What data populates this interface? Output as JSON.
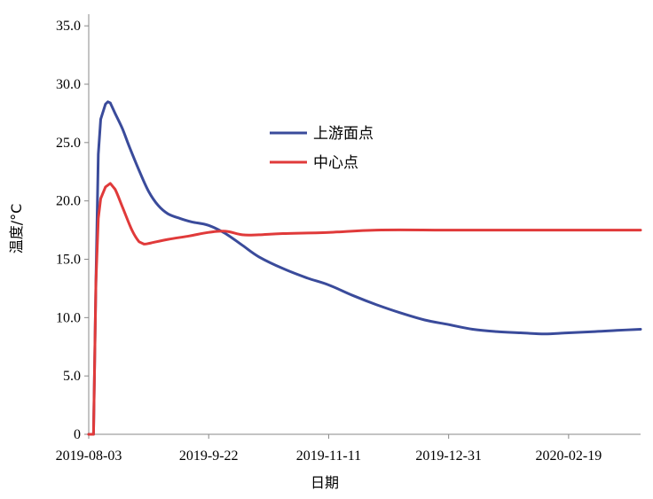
{
  "chart_data": {
    "type": "line",
    "title": "",
    "xlabel": "日期",
    "ylabel": "温度/°C",
    "x_tick_labels": [
      "2019-08-03",
      "2019-9-22",
      "2019-11-11",
      "2019-12-31",
      "2020-02-19"
    ],
    "x_ticks": [
      "2019-08-03",
      "2019-09-22",
      "2019-11-11",
      "2019-12-31",
      "2020-02-19"
    ],
    "xlim": [
      "2019-08-03",
      "2020-03-20"
    ],
    "y_tick_labels": [
      "0",
      "5.0",
      "10.0",
      "15.0",
      "20.0",
      "25.0",
      "30.0",
      "35.0"
    ],
    "ylim": [
      0,
      36
    ],
    "grid": false,
    "legend_position": "upper-center",
    "colors": {
      "上游面点": "#3a4b9b",
      "中心点": "#e03a3a"
    },
    "series": [
      {
        "name": "上游面点",
        "color": "#3a4b9b",
        "points": [
          [
            "2019-08-03",
            0.0
          ],
          [
            "2019-08-05",
            0.0
          ],
          [
            "2019-08-06",
            13.0
          ],
          [
            "2019-08-07",
            24.0
          ],
          [
            "2019-08-08",
            27.0
          ],
          [
            "2019-08-10",
            28.3
          ],
          [
            "2019-08-11",
            28.5
          ],
          [
            "2019-08-12",
            28.4
          ],
          [
            "2019-08-14",
            27.5
          ],
          [
            "2019-08-17",
            26.2
          ],
          [
            "2019-08-20",
            24.6
          ],
          [
            "2019-08-24",
            22.6
          ],
          [
            "2019-08-28",
            20.8
          ],
          [
            "2019-09-01",
            19.6
          ],
          [
            "2019-09-05",
            18.9
          ],
          [
            "2019-09-10",
            18.5
          ],
          [
            "2019-09-15",
            18.2
          ],
          [
            "2019-09-22",
            17.9
          ],
          [
            "2019-09-29",
            17.2
          ],
          [
            "2019-10-06",
            16.2
          ],
          [
            "2019-10-13",
            15.2
          ],
          [
            "2019-10-23",
            14.2
          ],
          [
            "2019-11-02",
            13.4
          ],
          [
            "2019-11-11",
            12.8
          ],
          [
            "2019-11-21",
            11.9
          ],
          [
            "2019-12-01",
            11.1
          ],
          [
            "2019-12-11",
            10.4
          ],
          [
            "2019-12-21",
            9.8
          ],
          [
            "2019-12-31",
            9.4
          ],
          [
            "2020-01-10",
            9.0
          ],
          [
            "2020-01-20",
            8.8
          ],
          [
            "2020-01-30",
            8.7
          ],
          [
            "2020-02-09",
            8.6
          ],
          [
            "2020-02-19",
            8.7
          ],
          [
            "2020-03-01",
            8.8
          ],
          [
            "2020-03-10",
            8.9
          ],
          [
            "2020-03-20",
            9.0
          ]
        ]
      },
      {
        "name": "中心点",
        "color": "#e03a3a",
        "points": [
          [
            "2019-08-03",
            0.0
          ],
          [
            "2019-08-05",
            0.0
          ],
          [
            "2019-08-06",
            13.0
          ],
          [
            "2019-08-07",
            18.5
          ],
          [
            "2019-08-08",
            20.2
          ],
          [
            "2019-08-10",
            21.2
          ],
          [
            "2019-08-12",
            21.5
          ],
          [
            "2019-08-14",
            21.0
          ],
          [
            "2019-08-17",
            19.5
          ],
          [
            "2019-08-21",
            17.5
          ],
          [
            "2019-08-24",
            16.5
          ],
          [
            "2019-08-26",
            16.3
          ],
          [
            "2019-08-29",
            16.4
          ],
          [
            "2019-09-05",
            16.7
          ],
          [
            "2019-09-14",
            17.0
          ],
          [
            "2019-09-22",
            17.3
          ],
          [
            "2019-09-29",
            17.4
          ],
          [
            "2019-10-06",
            17.1
          ],
          [
            "2019-10-13",
            17.1
          ],
          [
            "2019-10-23",
            17.2
          ],
          [
            "2019-11-11",
            17.3
          ],
          [
            "2019-12-01",
            17.5
          ],
          [
            "2019-12-31",
            17.5
          ],
          [
            "2020-01-30",
            17.5
          ],
          [
            "2020-02-19",
            17.5
          ],
          [
            "2020-03-20",
            17.5
          ]
        ]
      }
    ]
  }
}
